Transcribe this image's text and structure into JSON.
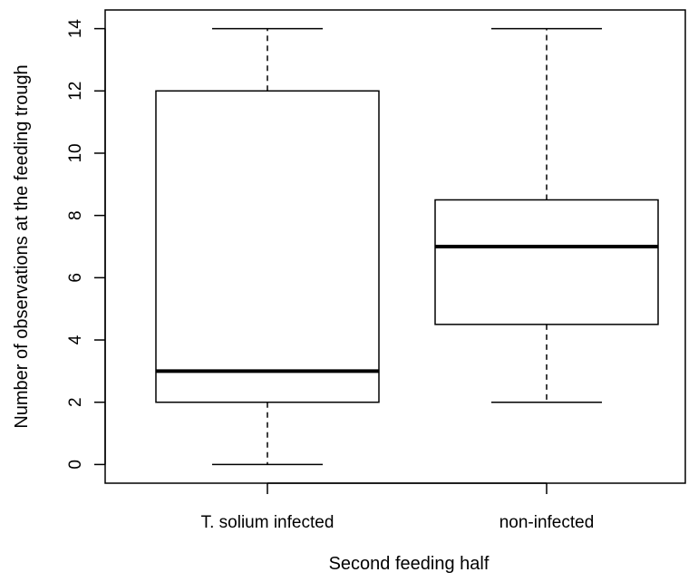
{
  "chart_data": {
    "type": "boxplot",
    "title": "",
    "xlabel": "Second feeding half",
    "ylabel": "Number of observations at the feeding trough",
    "ylim": [
      -0.6,
      14.6
    ],
    "yticks": [
      0,
      2,
      4,
      6,
      8,
      10,
      12,
      14
    ],
    "grid": false,
    "categories": [
      "T. solium infected",
      "non-infected"
    ],
    "boxes": [
      {
        "category": "T. solium infected",
        "min": 0,
        "q1": 2,
        "median": 3,
        "q3": 12,
        "max": 14
      },
      {
        "category": "non-infected",
        "min": 2,
        "q1": 4.5,
        "median": 7,
        "q3": 8.5,
        "max": 14
      }
    ]
  }
}
